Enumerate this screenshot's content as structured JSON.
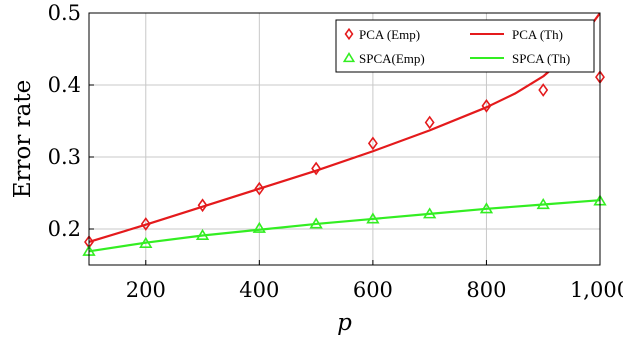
{
  "chart_data": {
    "type": "line",
    "title": "",
    "xlabel": "p",
    "ylabel": "Error rate",
    "xlim": [
      100,
      1000
    ],
    "ylim": [
      0.15,
      0.5
    ],
    "x_ticks": [
      200,
      400,
      600,
      800,
      1000
    ],
    "x_tick_labels": [
      "200",
      "400",
      "600",
      "800",
      "1,000"
    ],
    "y_ticks": [
      0.2,
      0.3,
      0.4,
      0.5
    ],
    "y_tick_labels": [
      "0.2",
      "0.3",
      "0.4",
      "0.5"
    ],
    "grid": true,
    "legend_position": "top-right",
    "series": [
      {
        "name": "PCA (Emp)",
        "kind": "markers",
        "marker": "diamond",
        "color": "#e41a1c",
        "x": [
          100,
          200,
          300,
          400,
          500,
          600,
          700,
          800,
          900,
          1000
        ],
        "values": [
          0.182,
          0.207,
          0.233,
          0.256,
          0.284,
          0.319,
          0.348,
          0.371,
          0.393,
          0.411
        ]
      },
      {
        "name": "PCA (Th)",
        "kind": "line",
        "color": "#e41a1c",
        "x": [
          100,
          200,
          300,
          400,
          500,
          600,
          700,
          800,
          850,
          900,
          950,
          1000
        ],
        "values": [
          0.182,
          0.206,
          0.231,
          0.256,
          0.281,
          0.308,
          0.337,
          0.369,
          0.388,
          0.412,
          0.446,
          0.5
        ]
      },
      {
        "name": "SPCA(Emp)",
        "kind": "markers",
        "marker": "triangle",
        "color": "#33ee22",
        "x": [
          100,
          200,
          300,
          400,
          500,
          600,
          700,
          800,
          900,
          1000
        ],
        "values": [
          0.169,
          0.18,
          0.191,
          0.201,
          0.207,
          0.214,
          0.221,
          0.228,
          0.234,
          0.239
        ]
      },
      {
        "name": "SPCA (Th)",
        "kind": "line",
        "color": "#33ee22",
        "x": [
          100,
          200,
          300,
          400,
          500,
          600,
          700,
          800,
          900,
          1000
        ],
        "values": [
          0.169,
          0.181,
          0.191,
          0.199,
          0.207,
          0.214,
          0.221,
          0.228,
          0.234,
          0.24
        ]
      }
    ]
  }
}
